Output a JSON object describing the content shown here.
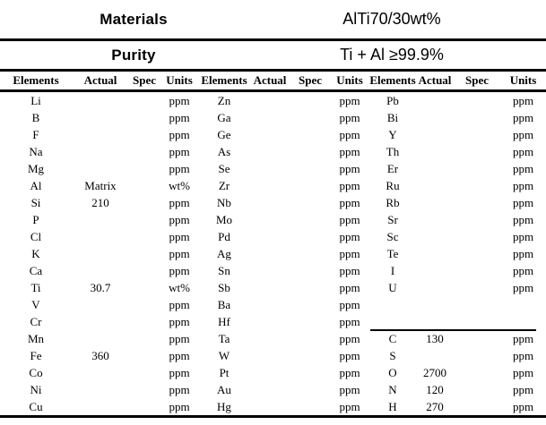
{
  "header": {
    "materials_label": "Materials",
    "materials_value": "AlTi70/30wt%",
    "purity_label": "Purity",
    "purity_value": "Ti + Al ≥99.9%"
  },
  "column_headers": [
    "Elements",
    "Actual",
    "Spec",
    "Units"
  ],
  "column_groups": 3,
  "rows": [
    [
      "Li",
      "",
      "",
      "ppm",
      "Zn",
      "",
      "",
      "ppm",
      "Pb",
      "",
      "",
      "ppm"
    ],
    [
      "B",
      "",
      "",
      "ppm",
      "Ga",
      "",
      "",
      "ppm",
      "Bi",
      "",
      "",
      "ppm"
    ],
    [
      "F",
      "",
      "",
      "ppm",
      "Ge",
      "",
      "",
      "ppm",
      "Y",
      "",
      "",
      "ppm"
    ],
    [
      "Na",
      "",
      "",
      "ppm",
      "As",
      "",
      "",
      "ppm",
      "Th",
      "",
      "",
      "ppm"
    ],
    [
      "Mg",
      "",
      "",
      "ppm",
      "Se",
      "",
      "",
      "ppm",
      "Er",
      "",
      "",
      "ppm"
    ],
    [
      "Al",
      "Matrix",
      "",
      "wt%",
      "Zr",
      "",
      "",
      "ppm",
      "Ru",
      "",
      "",
      "ppm"
    ],
    [
      "Si",
      "210",
      "",
      "ppm",
      "Nb",
      "",
      "",
      "ppm",
      "Rb",
      "",
      "",
      "ppm"
    ],
    [
      "P",
      "",
      "",
      "ppm",
      "Mo",
      "",
      "",
      "ppm",
      "Sr",
      "",
      "",
      "ppm"
    ],
    [
      "Cl",
      "",
      "",
      "ppm",
      "Pd",
      "",
      "",
      "ppm",
      "Sc",
      "",
      "",
      "ppm"
    ],
    [
      "K",
      "",
      "",
      "ppm",
      "Ag",
      "",
      "",
      "ppm",
      "Te",
      "",
      "",
      "ppm"
    ],
    [
      "Ca",
      "",
      "",
      "ppm",
      "Sn",
      "",
      "",
      "ppm",
      "I",
      "",
      "",
      "ppm"
    ],
    [
      "Ti",
      "30.7",
      "",
      "wt%",
      "Sb",
      "",
      "",
      "ppm",
      "U",
      "",
      "",
      "ppm"
    ],
    [
      "V",
      "",
      "",
      "ppm",
      "Ba",
      "",
      "",
      "ppm",
      "",
      "",
      "",
      ""
    ],
    [
      "Cr",
      "",
      "",
      "ppm",
      "Hf",
      "",
      "",
      "ppm",
      "",
      "",
      "",
      ""
    ],
    [
      "Mn",
      "",
      "",
      "ppm",
      "Ta",
      "",
      "",
      "ppm",
      "C",
      "130",
      "",
      "ppm"
    ],
    [
      "Fe",
      "360",
      "",
      "ppm",
      "W",
      "",
      "",
      "ppm",
      "S",
      "",
      "",
      "ppm"
    ],
    [
      "Co",
      "",
      "",
      "ppm",
      "Pt",
      "",
      "",
      "ppm",
      "O",
      "2700",
      "",
      "ppm"
    ],
    [
      "Ni",
      "",
      "",
      "ppm",
      "Au",
      "",
      "",
      "ppm",
      "N",
      "120",
      "",
      "ppm"
    ],
    [
      "Cu",
      "",
      "",
      "ppm",
      "Hg",
      "",
      "",
      "ppm",
      "H",
      "270",
      "",
      "ppm"
    ]
  ],
  "colors": {
    "text": "#000000",
    "background": "#ffffff",
    "rule": "#000000"
  }
}
